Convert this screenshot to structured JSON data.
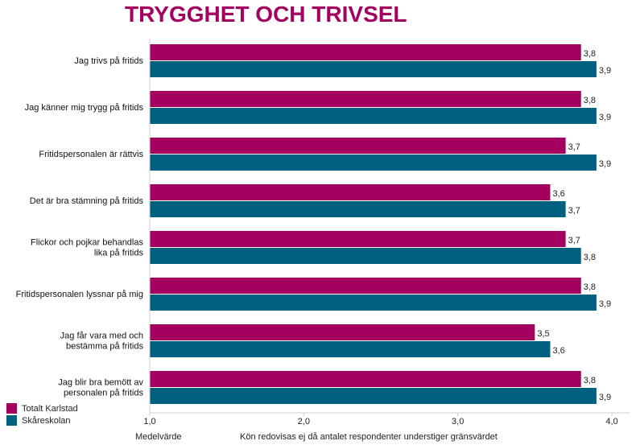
{
  "chart_data": {
    "type": "bar",
    "orientation": "horizontal",
    "title": "TRYGGHET OCH TRIVSEL",
    "xlabel": "Medelvärde",
    "note": "Kön redovisas ej då antalet respondenter understiger gränsvärdet",
    "xlim": [
      1.0,
      4.0
    ],
    "ticks": [
      "1,0",
      "2,0",
      "3,0",
      "4,0"
    ],
    "tick_values": [
      1.0,
      2.0,
      3.0,
      4.0
    ],
    "categories": [
      [
        "Jag trivs på fritids"
      ],
      [
        "Jag känner mig trygg på fritids"
      ],
      [
        "Fritidspersonalen är rättvis"
      ],
      [
        "Det är bra stämning på fritids"
      ],
      [
        "Flickor och pojkar behandlas",
        "lika på fritids"
      ],
      [
        "Fritidspersonalen lyssnar på mig"
      ],
      [
        "Jag får vara med och",
        "bestämma på fritids"
      ],
      [
        "Jag blir bra bemött av",
        "personalen på fritids"
      ]
    ],
    "series": [
      {
        "name": "Totalt Karlstad",
        "color": "#a3005f",
        "values": [
          3.8,
          3.8,
          3.7,
          3.6,
          3.7,
          3.8,
          3.5,
          3.8
        ],
        "labels": [
          "3,8",
          "3,8",
          "3,7",
          "3,6",
          "3,7",
          "3,8",
          "3,5",
          "3,8"
        ]
      },
      {
        "name": "Skåreskolan",
        "color": "#006080",
        "values": [
          3.9,
          3.9,
          3.9,
          3.7,
          3.8,
          3.9,
          3.6,
          3.9
        ],
        "labels": [
          "3,9",
          "3,9",
          "3,9",
          "3,7",
          "3,8",
          "3,9",
          "3,6",
          "3,9"
        ]
      }
    ],
    "legend_position": "bottom-left",
    "grid": false
  }
}
